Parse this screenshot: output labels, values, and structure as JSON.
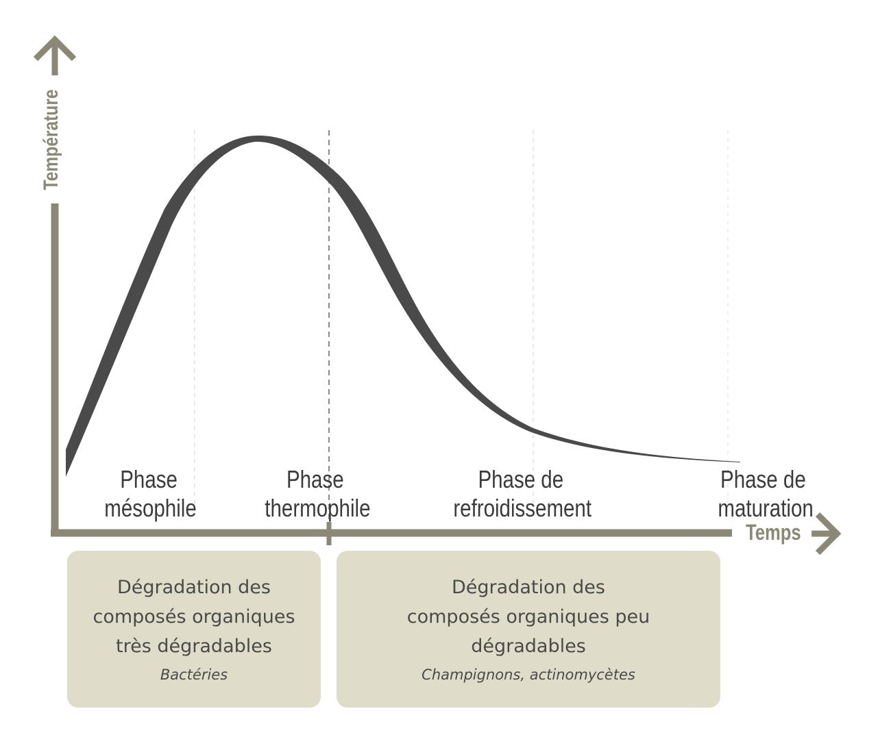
{
  "axes": {
    "y_label": "Température",
    "x_label": "Temps"
  },
  "phases": [
    {
      "line1": "Phase",
      "line2": "mésophile"
    },
    {
      "line1": "Phase",
      "line2": "thermophile"
    },
    {
      "line1": "Phase de",
      "line2": "refroidissement"
    },
    {
      "line1": "Phase de",
      "line2": "maturation"
    }
  ],
  "boxes": [
    {
      "lines": [
        "Dégradation des",
        "composés organiques",
        "très dégradables"
      ],
      "subtitle": "Bactéries"
    },
    {
      "lines": [
        "Dégradation des",
        "composés organiques peu",
        "dégradables"
      ],
      "subtitle": "Champignons, actinomycètes"
    }
  ],
  "colors": {
    "axis": "#8c8877",
    "curve": "#4a4a4a",
    "box_fill": "#dfddc9",
    "text": "#3b3b3b"
  }
}
